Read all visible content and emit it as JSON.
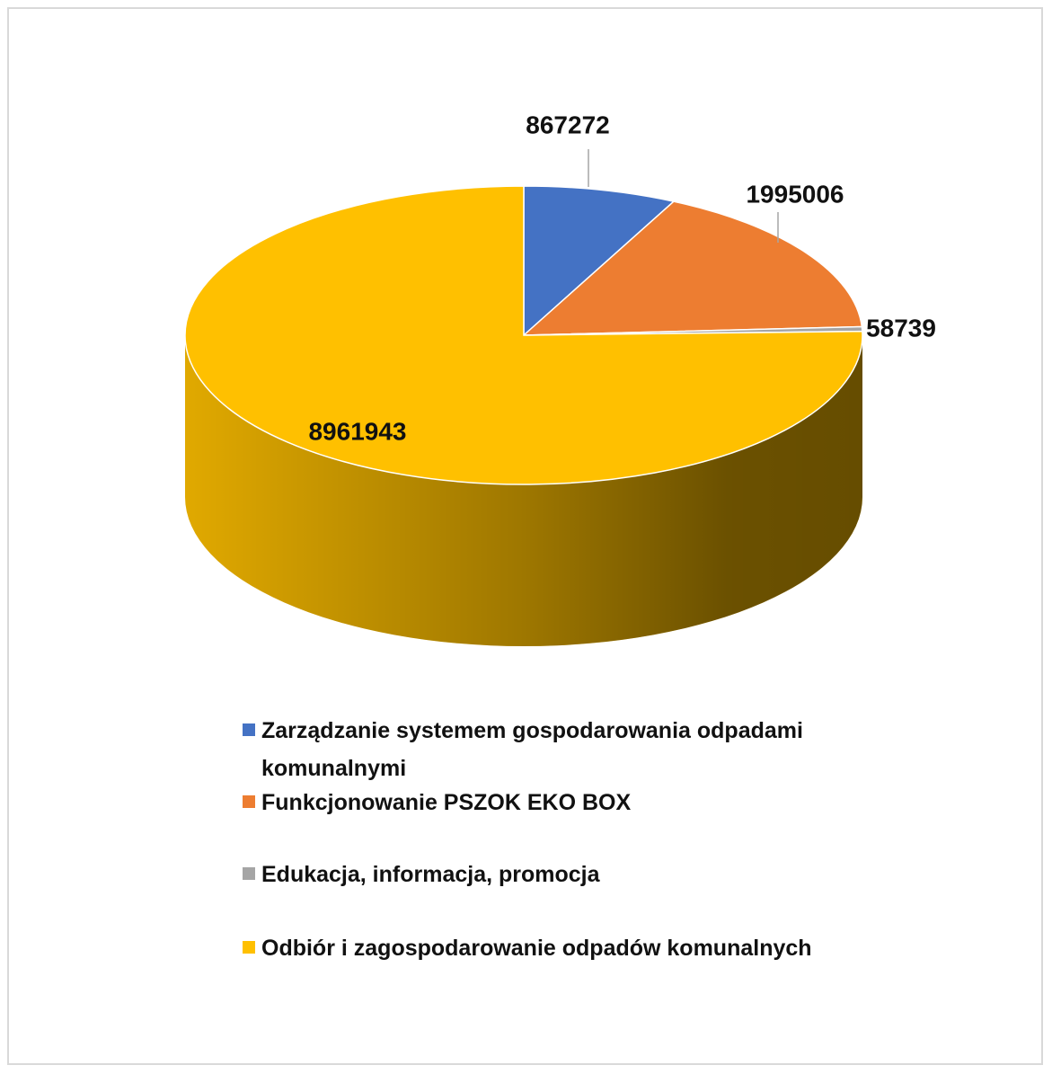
{
  "chart_data": {
    "type": "pie",
    "categories": [
      "Zarządzanie systemem gospodarowania odpadami komunalnymi",
      "Funkcjonowanie PSZOK EKO BOX",
      "Edukacja, informacja, promocja",
      "Odbiór i zagospodarowanie odpadów komunalnych"
    ],
    "values": [
      867272,
      1995006,
      58739,
      8961943
    ],
    "colors": [
      "#4472c4",
      "#ed7d31",
      "#a5a5a5",
      "#ffc000"
    ],
    "legend": "bottom"
  }
}
